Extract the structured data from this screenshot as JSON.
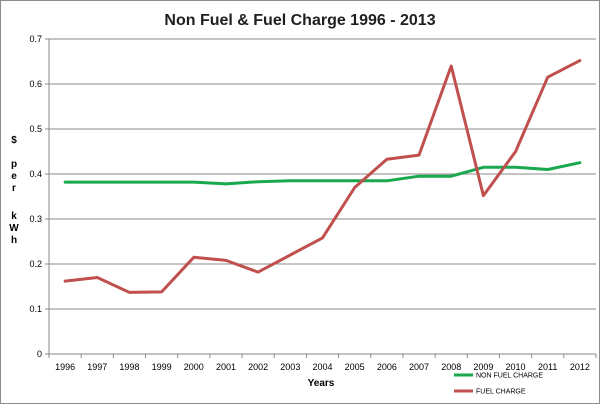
{
  "chart_data": {
    "type": "line",
    "title": "Non Fuel & Fuel Charge 1996 - 2013",
    "xlabel": "Years",
    "ylabel": [
      "$",
      "p",
      "e",
      "r",
      "k",
      "W",
      "h"
    ],
    "categories": [
      "1996",
      "1997",
      "1998",
      "1999",
      "2000",
      "2001",
      "2002",
      "2003",
      "2004",
      "2005",
      "2006",
      "2007",
      "2008",
      "2009",
      "2010",
      "2011",
      "2012"
    ],
    "ylim": [
      0,
      0.7
    ],
    "yticks": [
      0,
      0.1,
      0.2,
      0.3,
      0.4,
      0.5,
      0.6,
      0.7
    ],
    "ytick_labels": [
      "0",
      "0.1",
      "0.2",
      "0.3",
      "0.4",
      "0.5",
      "0.6",
      "0.7"
    ],
    "grid": true,
    "legend_position": "bottom-right",
    "series": [
      {
        "name": "NON FUEL CHARGE",
        "color": "#1aa84f",
        "values": [
          0.382,
          0.382,
          0.382,
          0.382,
          0.382,
          0.378,
          0.383,
          0.385,
          0.385,
          0.385,
          0.385,
          0.395,
          0.395,
          0.415,
          0.415,
          0.41,
          0.425
        ]
      },
      {
        "name": "FUEL CHARGE",
        "color": "#c0504d",
        "values": [
          0.162,
          0.17,
          0.137,
          0.138,
          0.215,
          0.208,
          0.182,
          0.22,
          0.258,
          0.37,
          0.433,
          0.442,
          0.64,
          0.352,
          0.45,
          0.615,
          0.652
        ]
      }
    ]
  }
}
